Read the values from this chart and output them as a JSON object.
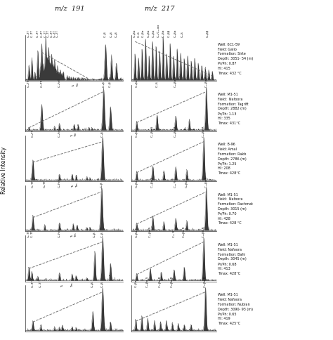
{
  "title_left": "m/z  191",
  "title_right": "m/z  217",
  "ylabel": "Relative Intensity",
  "background_color": "#ffffff",
  "num_rows": 6,
  "well_info": [
    "Well: 6C1-59\nField: Galio\nFormation: Sirte\nDepth: 3051- 54 (m)\nPr/Ph: 0.87\nHI: 415\nTmax: 432 °C",
    "Well: M1-51\nField:  Nafoora\nFormation: Tagrift\nDepth: 2882 (m)\nPr/Ph: 1.13\nHI: 335\nTmax: 431°C",
    "Well: B-96\nField: Amal\nFormation: Rakb\nDepth: 2786 (m)\nPr/Ph: 1.25\nHI: 208\nTmax: 428°C",
    "Well: M1-51\nField:  Nafoora\nFormation: Rachmat\nDepth: 3015 (m)\nPr/Ph: 0.70\nHI: 428\nTmax: 428 °C",
    "Well: M1-51\nField: Nafoora\nFormation: Bahi\nDepth: 3045 (m)\nPr/Ph: 0.68\nHI: 413\nTmax: 428°C",
    "Well: M1-51\nField: Nafoora\nFormation: Nubian\nDepth: 3090- 93 (m)\nPr/Ph: 0.65\nHI: 419\nTmax: 425°C"
  ],
  "line_color": "#111111",
  "dashed_line_color": "#555555",
  "text_color": "#111111"
}
